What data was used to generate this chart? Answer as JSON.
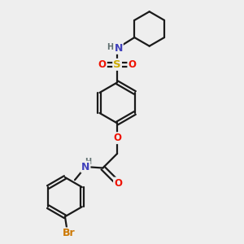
{
  "bg_color": "#eeeeee",
  "bond_color": "#1a1a1a",
  "colors": {
    "N": "#4040bb",
    "O": "#ee1100",
    "S": "#ccaa00",
    "Br": "#cc7700",
    "H": "#607070",
    "C": "#1a1a1a"
  },
  "lw": 1.6,
  "fs": 8.5
}
